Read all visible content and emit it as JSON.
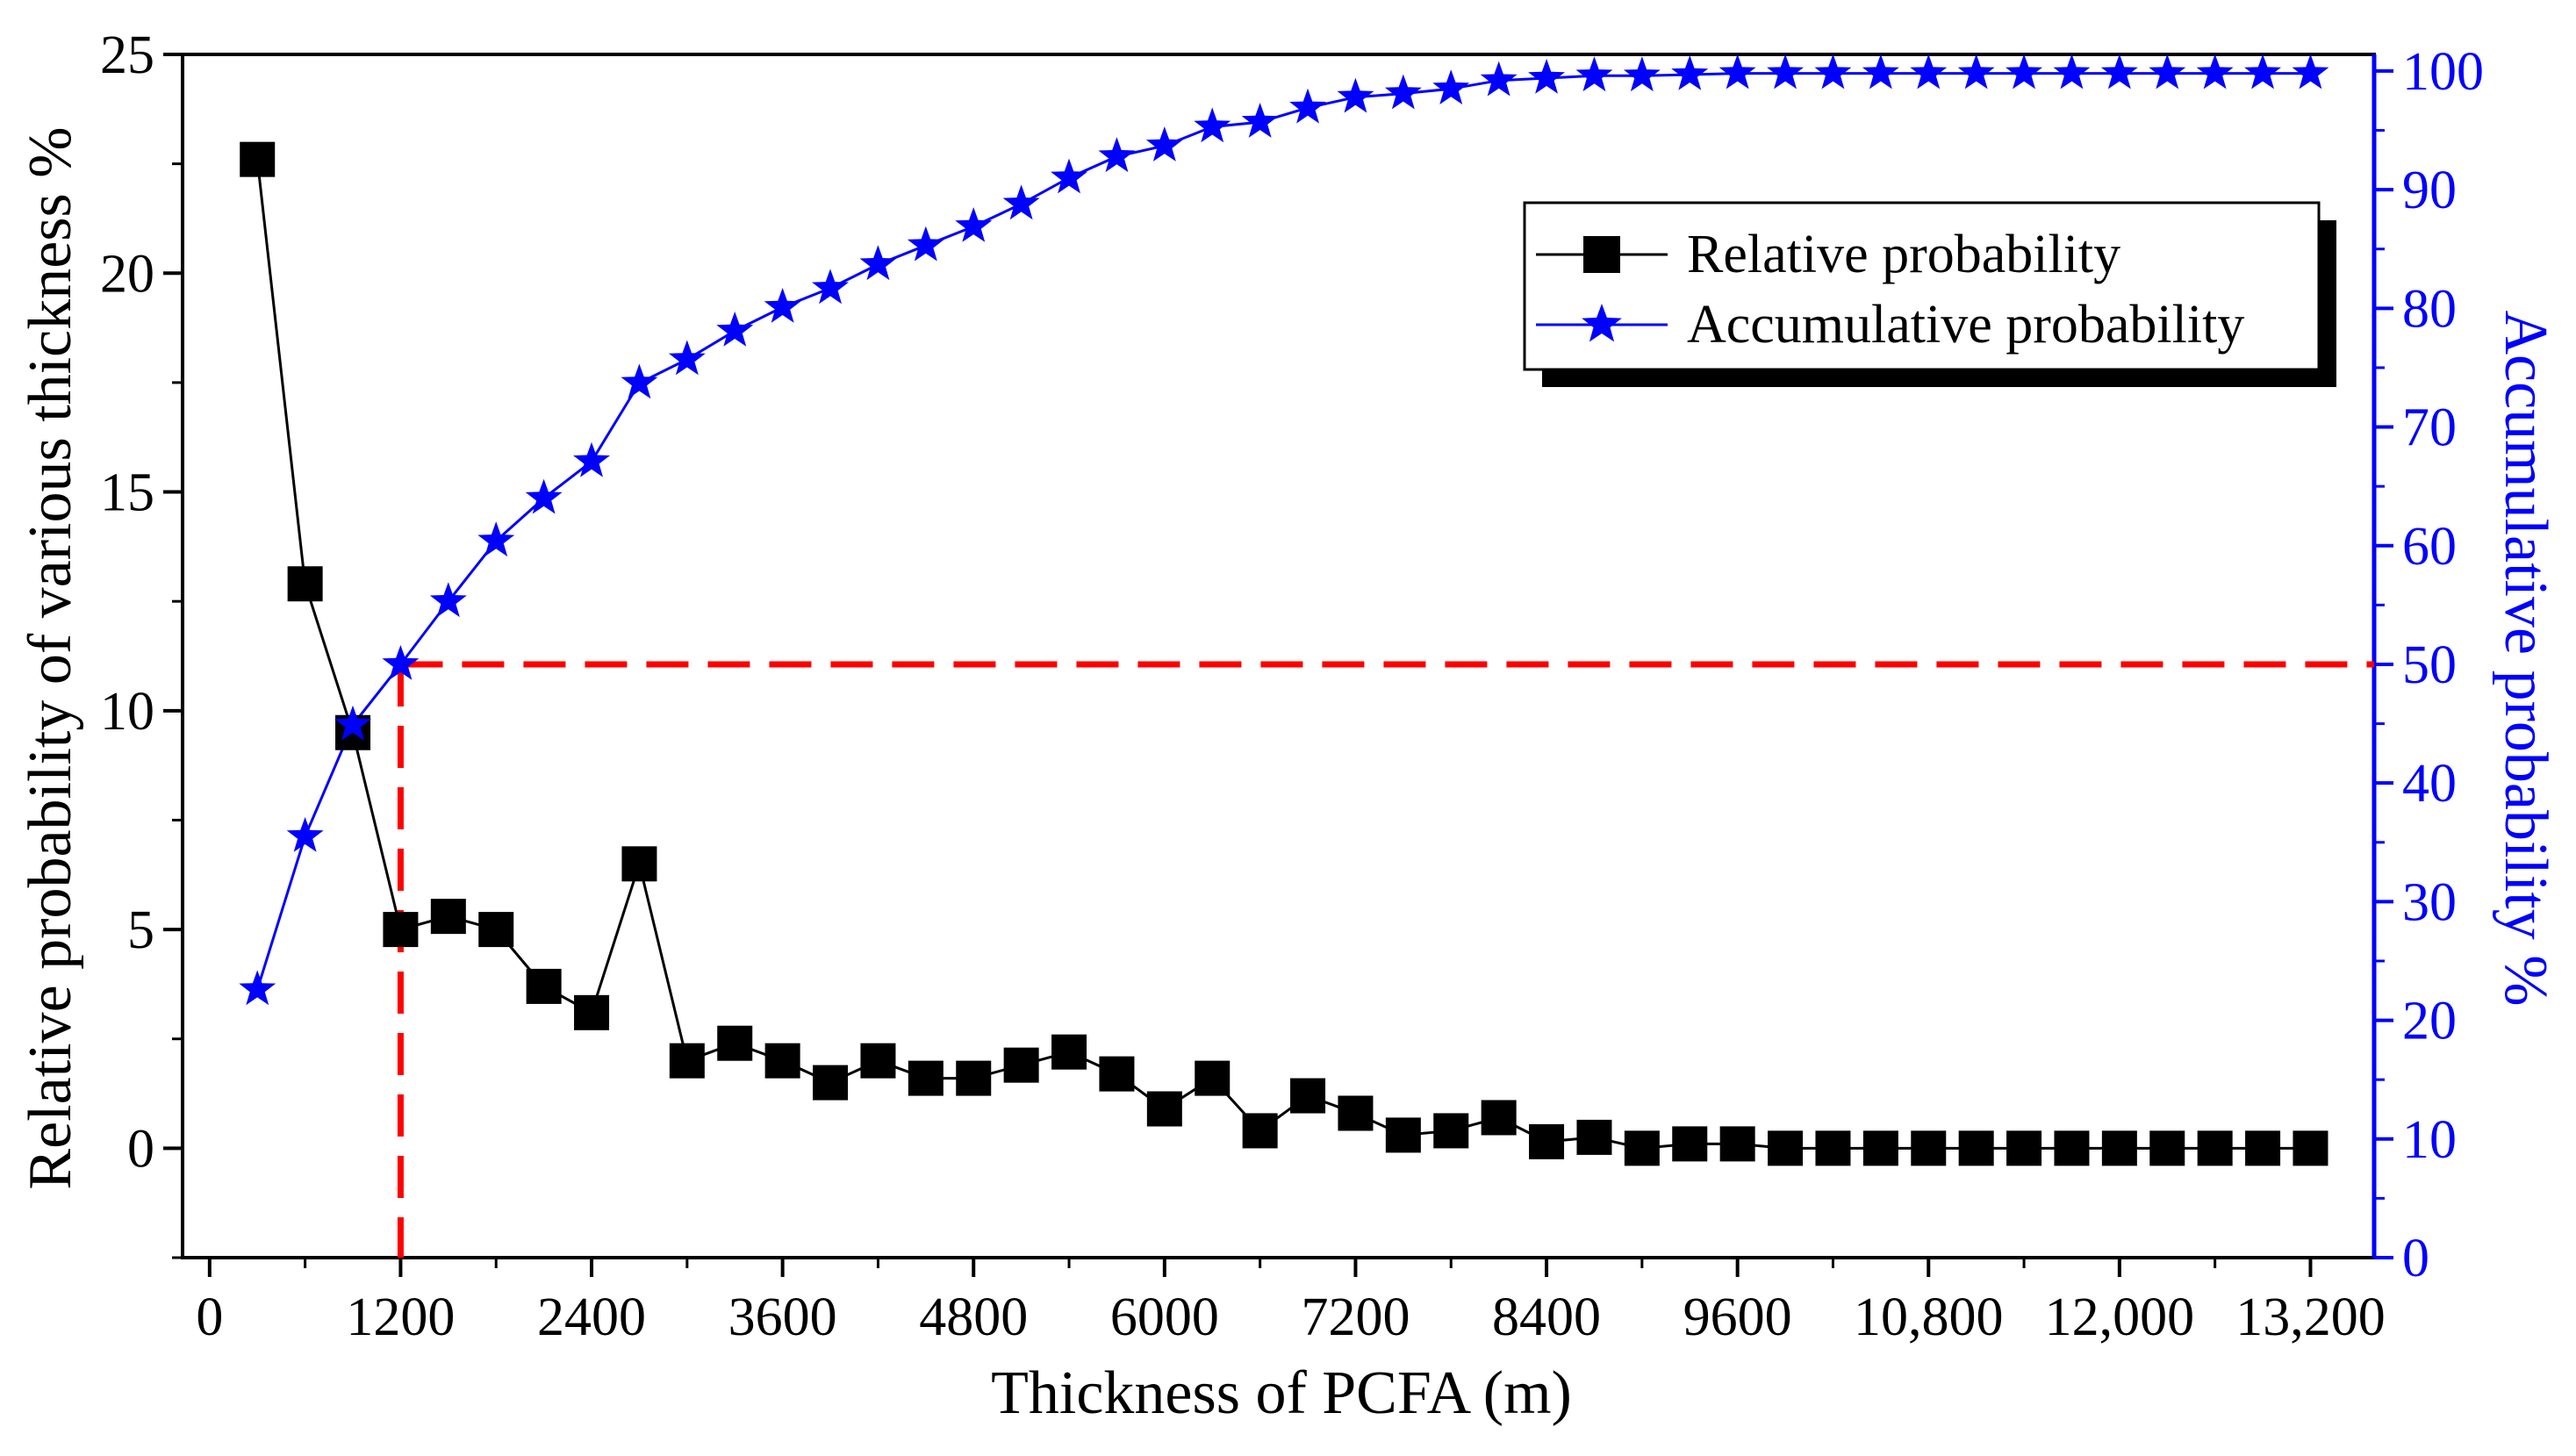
{
  "chart_data": {
    "type": "line",
    "title": "",
    "xlabel": "Thickness of PCFA (m)",
    "ylabel_left": "Relative probability of various thickness  %",
    "ylabel_right": "Accumulative probability  %",
    "xlim": [
      -170,
      13600
    ],
    "ylim_left": [
      -2.5,
      25
    ],
    "ylim_right": [
      0,
      101.4
    ],
    "x_ticks": [
      0,
      1200,
      2400,
      3600,
      4800,
      6000,
      7200,
      8400,
      9600,
      10800,
      12000,
      13200
    ],
    "x_tick_labels": [
      "0",
      "1200",
      "2400",
      "3600",
      "4800",
      "6000",
      "7200",
      "8400",
      "9600",
      "10,800",
      "12,000",
      "13,200"
    ],
    "y_left_ticks": [
      0,
      5,
      10,
      15,
      20,
      25
    ],
    "y_left_tick_labels": [
      "0",
      "5",
      "10",
      "15",
      "20",
      "25"
    ],
    "y_right_ticks": [
      0,
      10,
      20,
      30,
      40,
      50,
      60,
      70,
      80,
      90,
      100
    ],
    "y_right_tick_labels": [
      "0",
      "10",
      "20",
      "30",
      "40",
      "50",
      "60",
      "70",
      "80",
      "90",
      "100"
    ],
    "x": [
      300,
      600,
      900,
      1200,
      1500,
      1800,
      2100,
      2400,
      2700,
      3000,
      3300,
      3600,
      3900,
      4200,
      4500,
      4800,
      5100,
      5400,
      5700,
      6000,
      6300,
      6600,
      6900,
      7200,
      7500,
      7800,
      8100,
      8400,
      8700,
      9000,
      9300,
      9600,
      9900,
      10200,
      10500,
      10800,
      11100,
      11400,
      11700,
      12000,
      12300,
      12600,
      12900,
      13200
    ],
    "series": [
      {
        "name": "Relative probability",
        "axis": "left",
        "marker": "square",
        "color": "#000000",
        "values": [
          22.6,
          12.9,
          9.5,
          5.0,
          5.3,
          5.0,
          3.7,
          3.1,
          6.5,
          2.0,
          2.4,
          2.0,
          1.5,
          2.0,
          1.6,
          1.6,
          1.9,
          2.2,
          1.7,
          0.9,
          1.6,
          0.4,
          1.2,
          0.8,
          0.3,
          0.4,
          0.7,
          0.15,
          0.25,
          0.0,
          0.1,
          0.1,
          0.0,
          0.0,
          0.0,
          0.0,
          0.0,
          0.0,
          0.0,
          0.0,
          0.0,
          0.0,
          0.0,
          0.0
        ]
      },
      {
        "name": "Accumulative probability",
        "axis": "right",
        "marker": "star",
        "color": "#0000ff",
        "values": [
          22.6,
          35.5,
          44.9,
          50.0,
          55.3,
          60.4,
          64.0,
          67.1,
          73.7,
          75.7,
          78.1,
          80.1,
          81.7,
          83.7,
          85.3,
          86.9,
          88.8,
          91.0,
          92.8,
          93.7,
          95.3,
          95.7,
          96.9,
          97.8,
          98.1,
          98.5,
          99.2,
          99.4,
          99.6,
          99.6,
          99.7,
          99.8,
          99.8,
          99.8,
          99.8,
          99.8,
          99.8,
          99.8,
          99.8,
          99.8,
          99.8,
          99.8,
          99.8,
          99.8
        ]
      }
    ],
    "reference_lines": {
      "color": "#ff0000",
      "vertical_x": 1200,
      "horizontal_right_value": 50
    },
    "legend": {
      "position": "top-right",
      "entries": [
        "Relative probability",
        "Accumulative probability"
      ]
    },
    "grid": false,
    "colors": {
      "left_axis": "#000000",
      "right_axis": "#0000ff",
      "reference": "#ff0000"
    }
  }
}
